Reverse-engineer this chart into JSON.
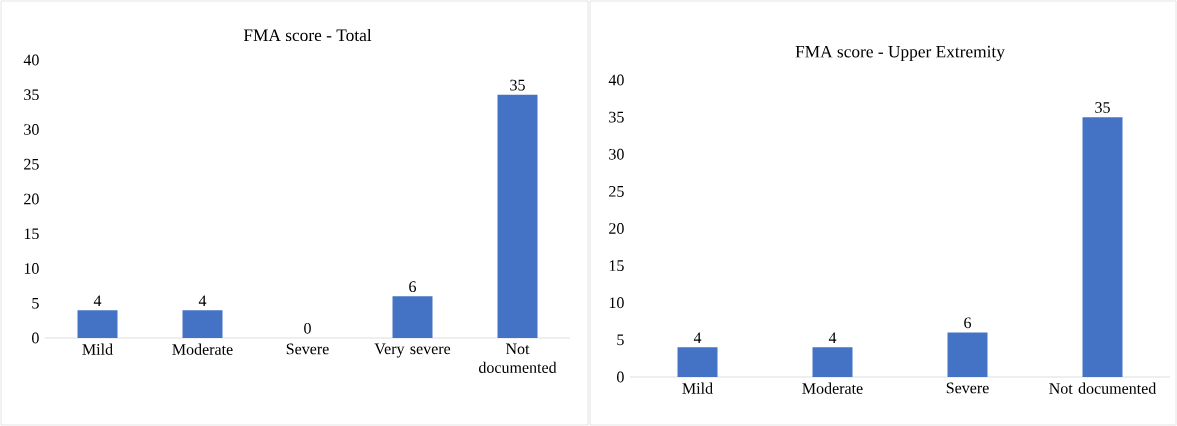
{
  "chart_data": [
    {
      "type": "bar",
      "title": "FMA score - Total",
      "categories": [
        "Mild",
        "Moderate",
        "Severe",
        "Very severe",
        "Not documented"
      ],
      "values": [
        4,
        4,
        0,
        6,
        35
      ],
      "color": "#4472c4",
      "ylim": [
        0,
        40
      ],
      "yticks": [
        0,
        5,
        10,
        15,
        20,
        25,
        30,
        35,
        40
      ],
      "data_labels": true,
      "grid": false
    },
    {
      "type": "bar",
      "title": "FMA score - Upper Extremity",
      "categories": [
        "Mild",
        "Moderate",
        "Severe",
        "Not documented"
      ],
      "values": [
        4,
        4,
        6,
        35
      ],
      "color": "#4472c4",
      "ylim": [
        0,
        40
      ],
      "yticks": [
        0,
        5,
        10,
        15,
        20,
        25,
        30,
        35,
        40
      ],
      "data_labels": true,
      "grid": false
    }
  ]
}
